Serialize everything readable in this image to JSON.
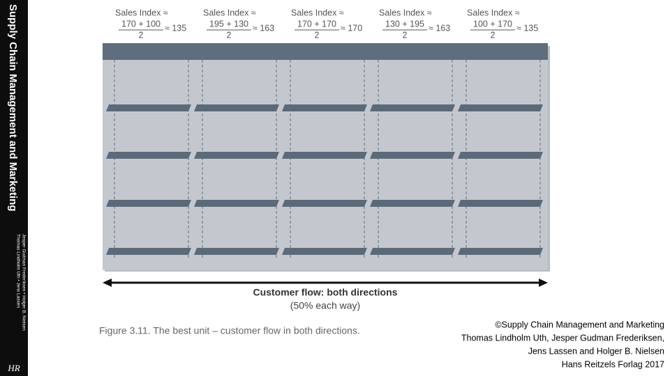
{
  "sidebar": {
    "title": "Supply Chain Management and Marketing",
    "authors": [
      "Thomas Lindholm Uth • Jens Lassen",
      "Jesper Gudman Frederiksen • Holger B. Nielsen"
    ],
    "logo": "HR"
  },
  "columns": [
    {
      "label": "Sales Index ≈",
      "numerator": "170 + 100",
      "denominator": "2",
      "result": "≈ 135"
    },
    {
      "label": "Sales Index ≈",
      "numerator": "195 + 130",
      "denominator": "2",
      "result": "≈ 163"
    },
    {
      "label": "Sales Index ≈",
      "numerator": "170 + 170",
      "denominator": "2",
      "result": "≈ 170"
    },
    {
      "label": "Sales Index ≈",
      "numerator": "130 + 195",
      "denominator": "2",
      "result": "≈ 163"
    },
    {
      "label": "Sales Index ≈",
      "numerator": "100 + 170",
      "denominator": "2",
      "result": "≈ 135"
    }
  ],
  "flow": {
    "title": "Customer flow: both directions",
    "subtitle": "(50% each way)"
  },
  "caption": "Figure 3.11. The best unit – customer flow in both directions.",
  "copyright": [
    "©Supply Chain Management and Marketing",
    "Thomas Lindholm Uth, Jesper Gudman Frederiksen,",
    "Jens Lassen and Holger B. Nielsen",
    "Hans Reitzels Forlag 2017"
  ]
}
